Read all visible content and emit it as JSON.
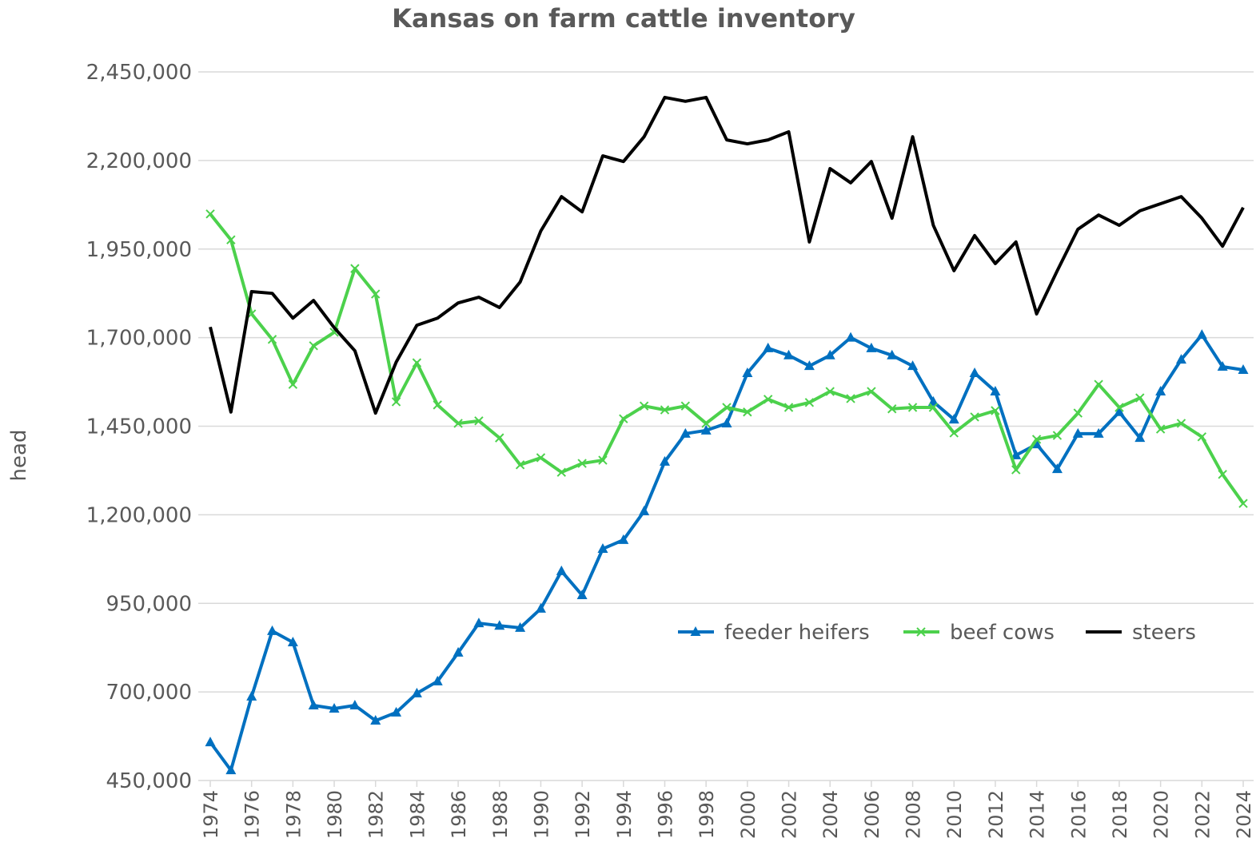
{
  "chart_data": {
    "type": "line",
    "title": "Kansas on farm cattle inventory",
    "y_label": "head",
    "x": [
      1974,
      1975,
      1976,
      1977,
      1978,
      1979,
      1980,
      1981,
      1982,
      1983,
      1984,
      1985,
      1986,
      1987,
      1988,
      1989,
      1990,
      1991,
      1992,
      1993,
      1994,
      1995,
      1996,
      1997,
      1998,
      1999,
      2000,
      2001,
      2002,
      2003,
      2004,
      2005,
      2006,
      2007,
      2008,
      2009,
      2010,
      2011,
      2012,
      2013,
      2014,
      2015,
      2016,
      2017,
      2018,
      2019,
      2020,
      2021,
      2022,
      2023,
      2024
    ],
    "xlim": [
      1974,
      2024
    ],
    "xticks": [
      1974,
      1976,
      1978,
      1980,
      1982,
      1984,
      1986,
      1988,
      1990,
      1992,
      1994,
      1996,
      1998,
      2000,
      2002,
      2004,
      2006,
      2008,
      2010,
      2012,
      2014,
      2016,
      2018,
      2020,
      2022,
      2024
    ],
    "ylim": [
      450000,
      2450000
    ],
    "yticks": [
      {
        "value": 450000,
        "label": "450,000"
      },
      {
        "value": 700000,
        "label": "700,000"
      },
      {
        "value": 950000,
        "label": "950,000"
      },
      {
        "value": 1200000,
        "label": "1,200,000"
      },
      {
        "value": 1450000,
        "label": "1,450,000"
      },
      {
        "value": 1700000,
        "label": "1,700,000"
      },
      {
        "value": 1950000,
        "label": "1,950,000"
      },
      {
        "value": 2200000,
        "label": "2,200,000"
      },
      {
        "value": 2450000,
        "label": "2,450,000"
      }
    ],
    "grid": true,
    "series": [
      {
        "name": "feeder heifers",
        "color": "#0070c0",
        "marker": "triangle",
        "values": [
          558000,
          479000,
          687000,
          872000,
          840000,
          662000,
          653000,
          662000,
          619000,
          642000,
          696000,
          730000,
          811000,
          894000,
          887000,
          881000,
          935000,
          1041000,
          973000,
          1104000,
          1129000,
          1210000,
          1350000,
          1429000,
          1438000,
          1458000,
          1600000,
          1670000,
          1650000,
          1620000,
          1650000,
          1700000,
          1670000,
          1650000,
          1620000,
          1519000,
          1469000,
          1600000,
          1548000,
          1368000,
          1399000,
          1329000,
          1429000,
          1429000,
          1490000,
          1417000,
          1548000,
          1638000,
          1708000,
          1618000,
          1609000
        ]
      },
      {
        "name": "beef cows",
        "color": "#4cd14c",
        "marker": "x",
        "values": [
          2049000,
          1976000,
          1767000,
          1695000,
          1568000,
          1677000,
          1715000,
          1895000,
          1823000,
          1519000,
          1629000,
          1510000,
          1458000,
          1465000,
          1417000,
          1341000,
          1361000,
          1320000,
          1345000,
          1354000,
          1471000,
          1507000,
          1496000,
          1507000,
          1458000,
          1503000,
          1490000,
          1526000,
          1503000,
          1517000,
          1548000,
          1528000,
          1548000,
          1499000,
          1503000,
          1503000,
          1431000,
          1476000,
          1494000,
          1327000,
          1413000,
          1424000,
          1487000,
          1568000,
          1503000,
          1530000,
          1442000,
          1458000,
          1420000,
          1314000,
          1232000
        ]
      },
      {
        "name": "steers",
        "color": "#000000",
        "marker": "none",
        "values": [
          1730000,
          1490000,
          1830000,
          1825000,
          1755000,
          1805000,
          1728000,
          1663000,
          1487000,
          1631000,
          1735000,
          1755000,
          1798000,
          1814000,
          1785000,
          1857000,
          2001000,
          2098000,
          2055000,
          2213000,
          2197000,
          2267000,
          2378000,
          2367000,
          2378000,
          2258000,
          2247000,
          2258000,
          2281000,
          1970000,
          2177000,
          2137000,
          2197000,
          2037000,
          2267000,
          2017000,
          1889000,
          1988000,
          1909000,
          1970000,
          1767000,
          1889000,
          2006000,
          2046000,
          2017000,
          2058000,
          2078000,
          2098000,
          2037000,
          1958000,
          2067000
        ]
      }
    ]
  }
}
